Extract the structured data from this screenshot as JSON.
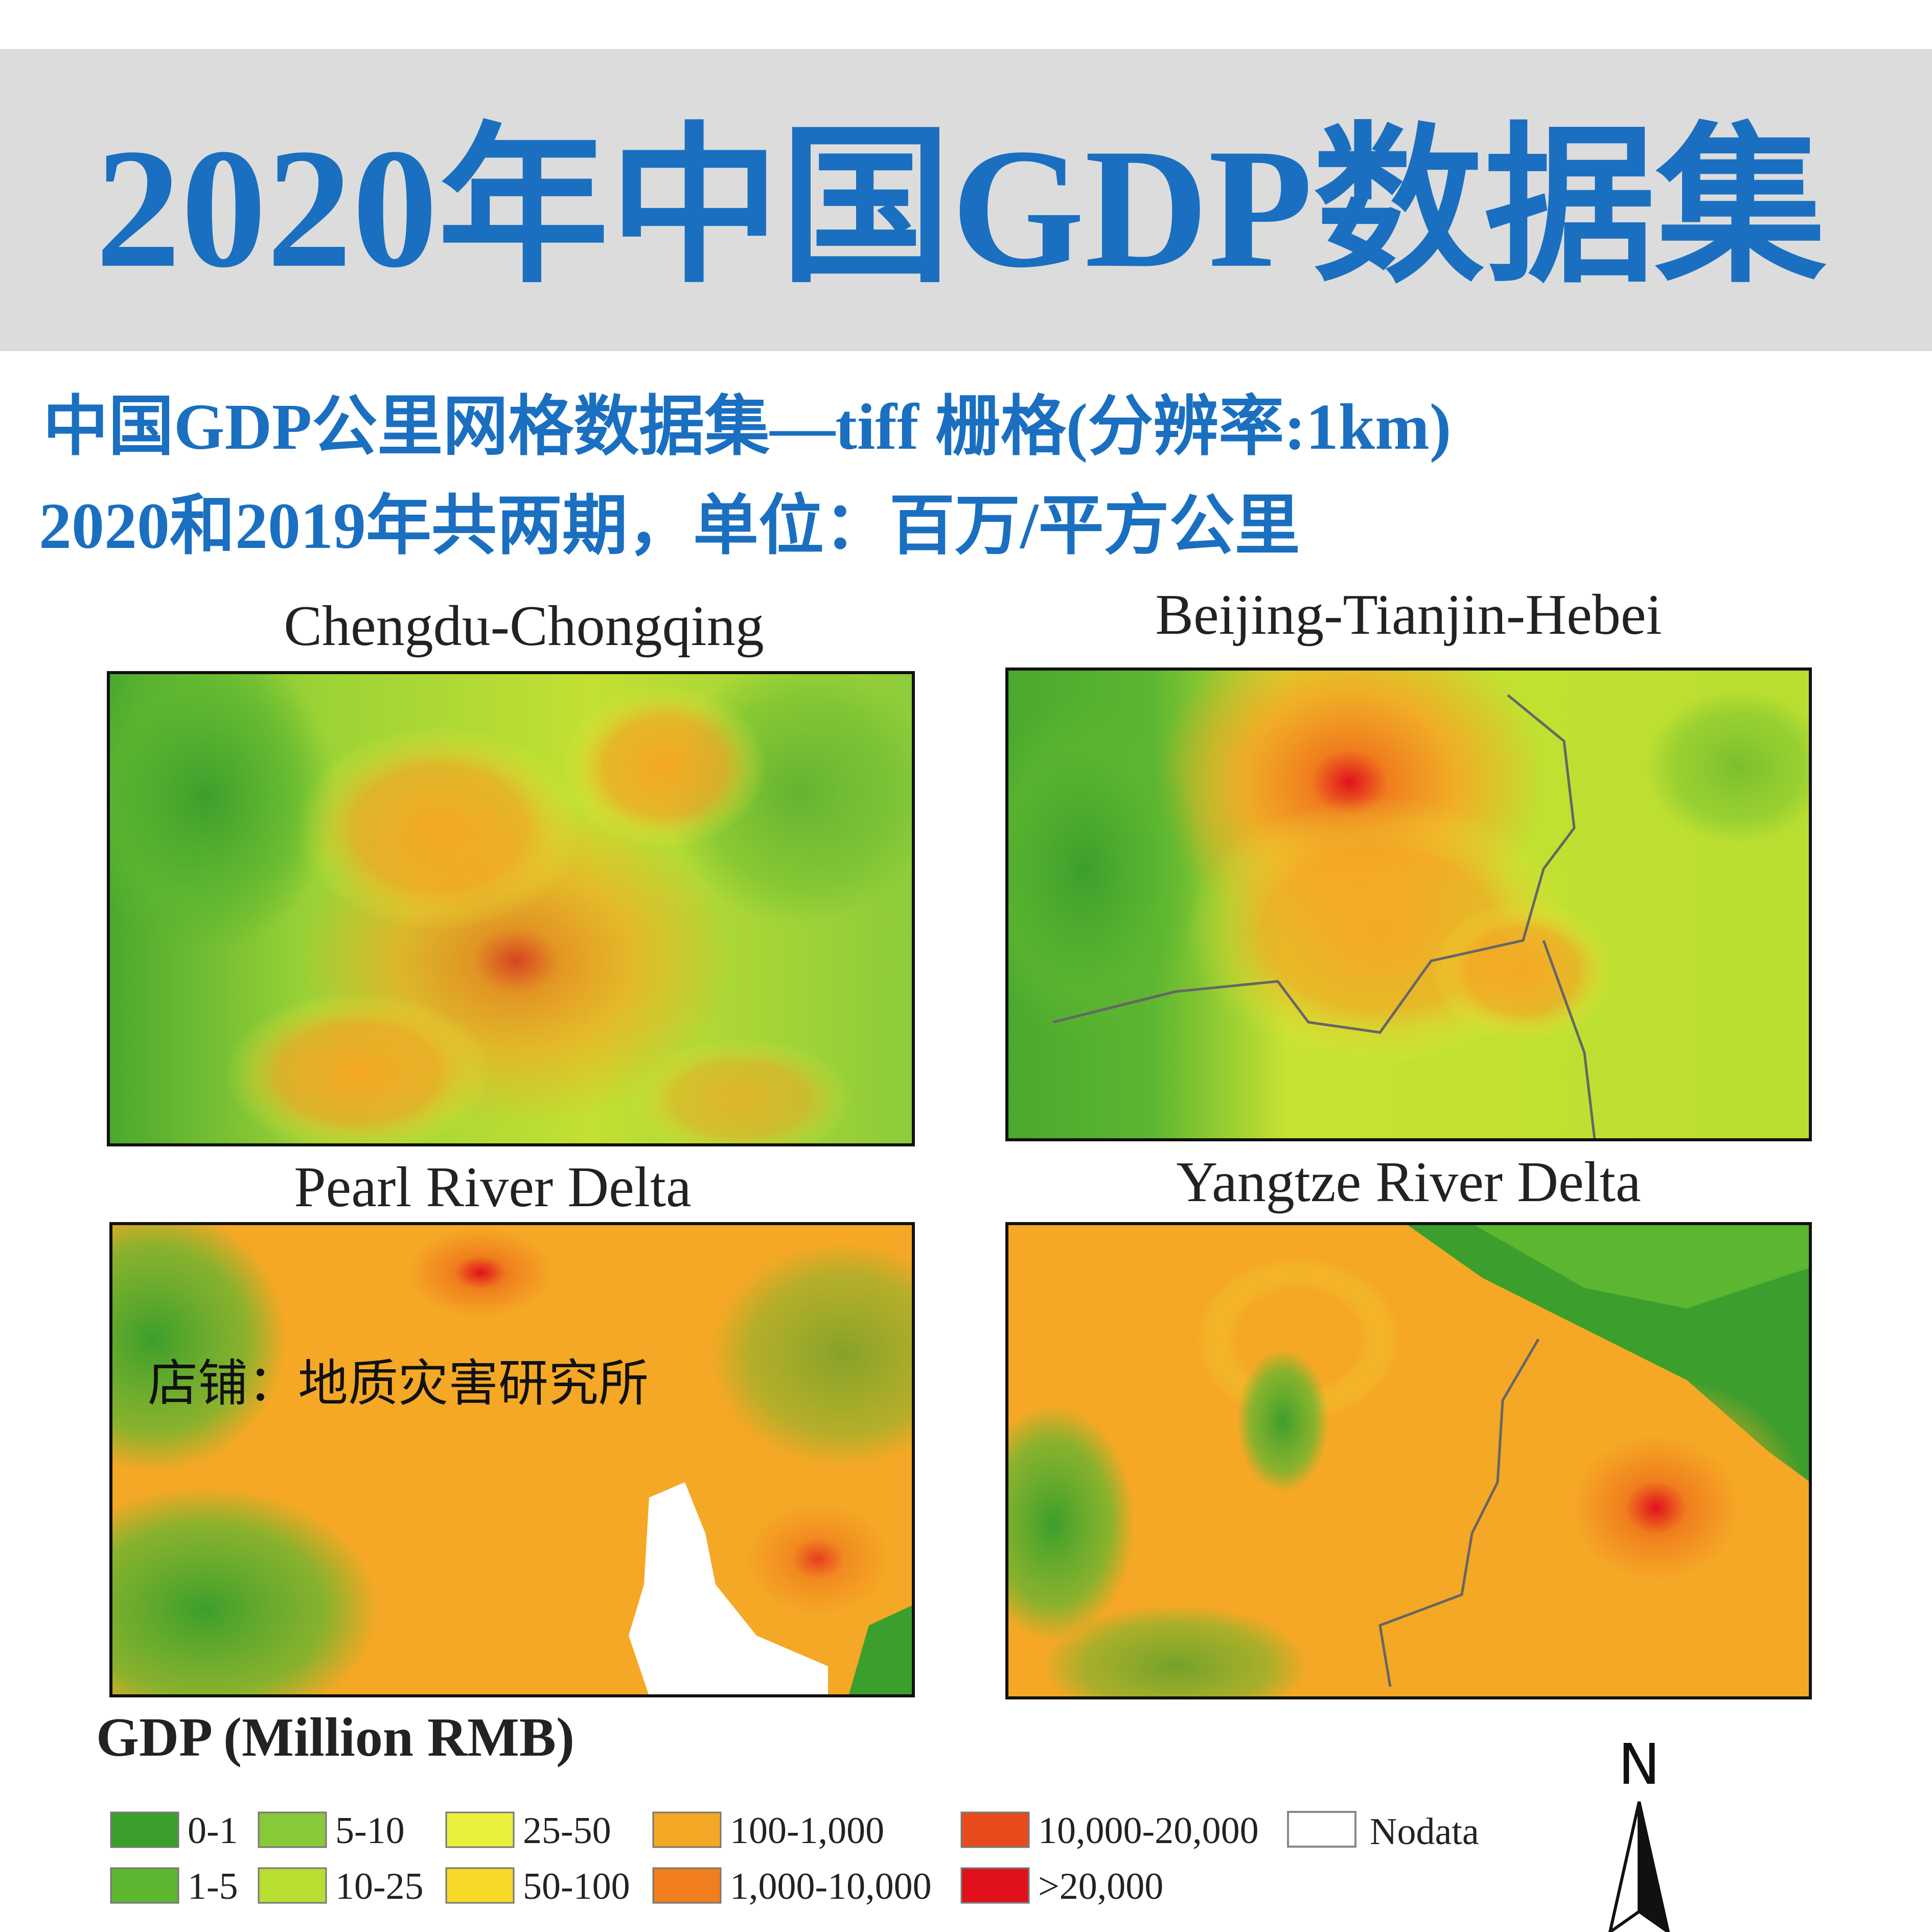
{
  "header": {
    "title": "2020年中国GDP数据集"
  },
  "subtitle": {
    "line1": "中国GDP公里网格数据集—tiff 栅格(分辨率:1km)",
    "line2": "2020和2019年共两期，单位：百万/平方公里"
  },
  "maps": [
    {
      "title": "Chengdu-Chongqing"
    },
    {
      "title": "Beijing-Tianjin-Hebei"
    },
    {
      "title": "Pearl River Delta"
    },
    {
      "title": "Yangtze River Delta"
    }
  ],
  "watermark": "店铺：地质灾害研究所",
  "legend": {
    "title": "GDP (Million RMB)",
    "items": [
      {
        "label": "0-1",
        "color": "#3c9e2c"
      },
      {
        "label": "1-5",
        "color": "#5cb630"
      },
      {
        "label": "5-10",
        "color": "#88c93a"
      },
      {
        "label": "10-25",
        "color": "#b8de31"
      },
      {
        "label": "25-50",
        "color": "#e9f03c"
      },
      {
        "label": "50-100",
        "color": "#f8d92a"
      },
      {
        "label": "100-1,000",
        "color": "#f5a825"
      },
      {
        "label": "1,000-10,000",
        "color": "#f07d1e"
      },
      {
        "label": "10,000-20,000",
        "color": "#e84b1b"
      },
      {
        "label": ">20,000",
        "color": "#e0111b"
      }
    ],
    "nodata": "Nodata"
  },
  "north": "N"
}
